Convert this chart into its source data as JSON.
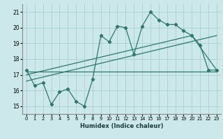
{
  "xlabel": "Humidex (Indice chaleur)",
  "ylabel": "",
  "background_color": "#cce8ea",
  "grid_color": "#aacfd2",
  "line_color": "#2a7a6a",
  "xlim": [
    -0.5,
    23.5
  ],
  "ylim": [
    14.5,
    21.5
  ],
  "xticks": [
    0,
    1,
    2,
    3,
    4,
    5,
    6,
    7,
    8,
    9,
    10,
    11,
    12,
    13,
    14,
    15,
    16,
    17,
    18,
    19,
    20,
    21,
    22,
    23
  ],
  "yticks": [
    15,
    16,
    17,
    18,
    19,
    20,
    21
  ],
  "main_x": [
    0,
    1,
    2,
    3,
    4,
    5,
    6,
    7,
    8,
    9,
    10,
    11,
    12,
    13,
    14,
    15,
    16,
    17,
    18,
    19,
    20,
    21,
    22,
    23
  ],
  "main_y": [
    17.3,
    16.3,
    16.5,
    15.1,
    15.9,
    16.1,
    15.3,
    15.0,
    16.7,
    19.5,
    19.1,
    20.1,
    20.0,
    18.3,
    20.1,
    21.0,
    20.5,
    20.2,
    20.2,
    19.8,
    19.5,
    18.9,
    17.3,
    17.3
  ],
  "line2_x": [
    0,
    23
  ],
  "line2_y": [
    17.2,
    17.2
  ],
  "line3_x": [
    0,
    20,
    23
  ],
  "line3_y": [
    17.0,
    19.5,
    17.3
  ],
  "line4_x": [
    0,
    23
  ],
  "line4_y": [
    16.6,
    19.5
  ]
}
